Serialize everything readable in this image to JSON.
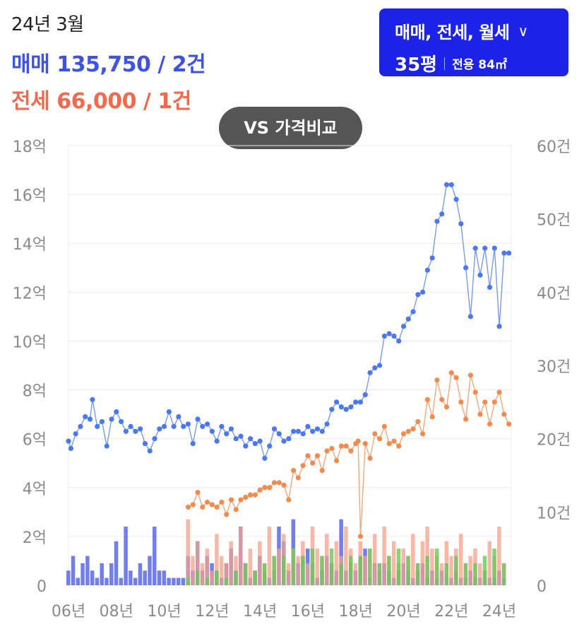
{
  "header": {
    "date": "24년 3월",
    "sale_label": "매매",
    "sale_value": "135,750 / 2건",
    "jeonse_label": "전세",
    "jeonse_value": "66,000 / 1건"
  },
  "filter": {
    "types": "매매, 전세, 월세",
    "pyeong": "35평",
    "area": "전용 84㎡"
  },
  "compare_button": "VS 가격비교",
  "colors": {
    "sale": "#4a78f0",
    "jeonse": "#f48a4c",
    "sale_bar": "#5a66f0",
    "jeonse_bar": "#f4a08a",
    "monthly_bar": "#6cc65a",
    "accent": "#1d22e8"
  },
  "chart_data": {
    "type": "line",
    "x_ticks": [
      "06년",
      "08년",
      "10년",
      "12년",
      "14년",
      "16년",
      "18년",
      "20년",
      "22년",
      "24년"
    ],
    "y_left_ticks": [
      "0",
      "2억",
      "4억",
      "6억",
      "8억",
      "10억",
      "12억",
      "14억",
      "16억",
      "18억"
    ],
    "y_right_ticks": [
      "0",
      "10건",
      "20건",
      "30건",
      "40건",
      "50건",
      "60건"
    ],
    "y_left_range": [
      0,
      18
    ],
    "y_right_range": [
      0,
      60
    ],
    "x_range": [
      2006,
      2024.5
    ],
    "grid": true,
    "series": [
      {
        "name": "매매",
        "kind": "price",
        "x": [
          2006.0,
          2006.1,
          2006.3,
          2006.5,
          2006.7,
          2006.9,
          2007.0,
          2007.2,
          2007.4,
          2007.6,
          2007.8,
          2008.0,
          2008.2,
          2008.4,
          2008.6,
          2008.8,
          2009.0,
          2009.2,
          2009.4,
          2009.6,
          2009.8,
          2010.0,
          2010.2,
          2010.4,
          2010.6,
          2010.8,
          2011.0,
          2011.2,
          2011.4,
          2011.6,
          2011.8,
          2012.0,
          2012.2,
          2012.4,
          2012.6,
          2012.8,
          2013.0,
          2013.2,
          2013.4,
          2013.6,
          2013.8,
          2014.0,
          2014.2,
          2014.4,
          2014.6,
          2014.8,
          2015.0,
          2015.2,
          2015.4,
          2015.6,
          2015.8,
          2016.0,
          2016.2,
          2016.4,
          2016.6,
          2016.8,
          2017.0,
          2017.2,
          2017.4,
          2017.6,
          2017.8,
          2018.0,
          2018.2,
          2018.4,
          2018.6,
          2018.8,
          2019.0,
          2019.2,
          2019.4,
          2019.6,
          2019.8,
          2020.0,
          2020.2,
          2020.4,
          2020.6,
          2020.8,
          2021.0,
          2021.2,
          2021.4,
          2021.6,
          2021.8,
          2022.0,
          2022.2,
          2022.4,
          2022.6,
          2022.8,
          2023.0,
          2023.2,
          2023.4,
          2023.6,
          2023.8,
          2024.0,
          2024.2,
          2024.4
        ],
        "values": [
          5.9,
          5.6,
          6.2,
          6.5,
          6.9,
          6.8,
          7.6,
          6.5,
          6.7,
          5.7,
          6.8,
          7.1,
          6.7,
          6.3,
          6.5,
          6.3,
          6.4,
          5.8,
          5.5,
          6.0,
          6.4,
          6.5,
          7.1,
          6.5,
          6.9,
          6.5,
          6.6,
          5.8,
          6.8,
          6.5,
          6.6,
          6.3,
          5.9,
          6.5,
          6.2,
          6.4,
          6.0,
          6.1,
          5.7,
          6.0,
          5.8,
          5.9,
          5.2,
          5.7,
          6.4,
          6.2,
          5.9,
          6.0,
          6.3,
          6.3,
          6.2,
          6.5,
          6.3,
          6.4,
          6.3,
          6.6,
          7.2,
          7.5,
          7.3,
          7.2,
          7.3,
          7.5,
          7.5,
          7.8,
          8.7,
          8.9,
          9.0,
          10.2,
          10.3,
          10.2,
          10.0,
          10.6,
          10.9,
          11.2,
          11.9,
          12.0,
          12.9,
          13.4,
          14.9,
          15.2,
          16.4,
          16.4,
          15.8,
          14.8,
          13.0,
          11.0,
          13.8,
          12.7,
          13.8,
          12.2,
          13.8,
          10.6,
          13.6,
          13.6
        ]
      },
      {
        "name": "전세",
        "kind": "price",
        "x": [
          2011.0,
          2011.2,
          2011.4,
          2011.6,
          2011.8,
          2012.0,
          2012.2,
          2012.4,
          2012.6,
          2012.8,
          2013.0,
          2013.2,
          2013.4,
          2013.6,
          2013.8,
          2014.0,
          2014.2,
          2014.4,
          2014.6,
          2014.8,
          2015.0,
          2015.2,
          2015.4,
          2015.6,
          2015.8,
          2016.0,
          2016.2,
          2016.4,
          2016.6,
          2016.8,
          2017.0,
          2017.2,
          2017.4,
          2017.6,
          2017.8,
          2018.0,
          2018.1,
          2018.2,
          2018.4,
          2018.6,
          2018.8,
          2019.0,
          2019.2,
          2019.4,
          2019.6,
          2019.8,
          2020.0,
          2020.2,
          2020.4,
          2020.6,
          2020.8,
          2021.0,
          2021.2,
          2021.4,
          2021.6,
          2021.8,
          2022.0,
          2022.2,
          2022.4,
          2022.6,
          2022.8,
          2023.0,
          2023.2,
          2023.4,
          2023.6,
          2023.8,
          2024.0,
          2024.2,
          2024.4
        ],
        "values": [
          3.2,
          3.3,
          3.8,
          3.2,
          3.4,
          3.3,
          3.2,
          3.4,
          2.9,
          3.5,
          3.1,
          3.5,
          3.6,
          3.7,
          3.7,
          3.9,
          4.0,
          4.0,
          4.2,
          4.2,
          4.1,
          3.5,
          4.7,
          4.4,
          4.9,
          5.3,
          5.0,
          5.3,
          4.7,
          5.5,
          5.6,
          5.1,
          5.7,
          5.7,
          5.5,
          5.8,
          5.9,
          2.0,
          5.8,
          5.2,
          6.2,
          6.0,
          6.5,
          5.8,
          5.9,
          5.7,
          6.2,
          6.3,
          6.4,
          6.7,
          6.2,
          7.6,
          6.9,
          8.4,
          7.6,
          7.3,
          8.7,
          8.5,
          7.5,
          6.8,
          8.6,
          7.9,
          7.0,
          7.5,
          6.6,
          7.5,
          7.9,
          7.0,
          6.6
        ]
      },
      {
        "name": "매매 거래량",
        "kind": "volume",
        "x": [
          2006.0,
          2006.2,
          2006.4,
          2006.6,
          2006.8,
          2007.0,
          2007.2,
          2007.4,
          2007.6,
          2007.8,
          2008.0,
          2008.2,
          2008.4,
          2008.6,
          2008.8,
          2009.0,
          2009.2,
          2009.4,
          2009.6,
          2009.8,
          2010.0,
          2010.2,
          2010.4,
          2010.6,
          2010.8,
          2011.0,
          2011.2,
          2011.4,
          2011.6,
          2011.8,
          2012.0,
          2012.2,
          2012.4,
          2012.6,
          2012.8,
          2013.0,
          2013.2,
          2013.4,
          2013.6,
          2013.8,
          2014.0,
          2014.2,
          2014.4,
          2014.6,
          2014.8,
          2015.0,
          2015.2,
          2015.4,
          2015.6,
          2015.8,
          2016.0,
          2016.2,
          2016.4,
          2016.6,
          2016.8,
          2017.0,
          2017.2,
          2017.4,
          2017.6,
          2017.8,
          2018.0,
          2018.2,
          2018.4,
          2018.6,
          2018.8,
          2019.0,
          2019.2,
          2019.4,
          2019.6,
          2019.8,
          2020.0,
          2020.2,
          2020.4,
          2020.6,
          2020.8,
          2021.0,
          2021.2,
          2021.4,
          2021.6,
          2021.8,
          2022.0,
          2022.2,
          2022.4,
          2022.6,
          2022.8,
          2023.0,
          2023.2,
          2023.4,
          2023.6,
          2023.8,
          2024.0,
          2024.2
        ],
        "values": [
          2,
          4,
          1,
          3,
          4,
          2,
          1,
          3,
          1,
          3,
          6,
          1,
          8,
          2,
          1,
          3,
          2,
          4,
          8,
          2,
          2,
          1,
          1,
          1,
          1,
          4,
          2,
          6,
          2,
          4,
          3,
          2,
          1,
          3,
          5,
          2,
          8,
          3,
          1,
          2,
          4,
          2,
          1,
          2,
          8,
          6,
          2,
          9,
          3,
          4,
          5,
          3,
          1,
          2,
          4,
          3,
          2,
          9,
          2,
          3,
          2,
          4,
          5,
          1,
          3,
          2,
          3,
          2,
          1,
          2,
          3,
          2,
          1,
          2,
          3,
          1,
          2,
          1,
          2,
          1,
          1,
          2,
          1,
          1,
          2,
          1,
          1,
          2,
          1,
          1,
          2,
          1
        ]
      },
      {
        "name": "전세 거래량",
        "kind": "volume",
        "x": [
          2011.0,
          2011.2,
          2011.4,
          2011.6,
          2011.8,
          2012.0,
          2012.2,
          2012.4,
          2012.6,
          2012.8,
          2013.0,
          2013.2,
          2013.4,
          2013.6,
          2013.8,
          2014.0,
          2014.2,
          2014.4,
          2014.6,
          2014.8,
          2015.0,
          2015.2,
          2015.4,
          2015.6,
          2015.8,
          2016.0,
          2016.2,
          2016.4,
          2016.6,
          2016.8,
          2017.0,
          2017.2,
          2017.4,
          2017.6,
          2017.8,
          2018.0,
          2018.2,
          2018.4,
          2018.6,
          2018.8,
          2019.0,
          2019.2,
          2019.4,
          2019.6,
          2019.8,
          2020.0,
          2020.2,
          2020.4,
          2020.6,
          2020.8,
          2021.0,
          2021.2,
          2021.4,
          2021.6,
          2021.8,
          2022.0,
          2022.2,
          2022.4,
          2022.6,
          2022.8,
          2023.0,
          2023.2,
          2023.4,
          2023.6,
          2023.8,
          2024.0,
          2024.2
        ],
        "values": [
          9,
          4,
          6,
          3,
          5,
          2,
          7,
          4,
          3,
          6,
          4,
          8,
          3,
          5,
          2,
          6,
          3,
          8,
          4,
          5,
          7,
          3,
          5,
          4,
          6,
          3,
          8,
          5,
          4,
          7,
          3,
          6,
          4,
          8,
          5,
          3,
          6,
          4,
          5,
          7,
          3,
          8,
          4,
          6,
          3,
          5,
          4,
          7,
          3,
          6,
          8,
          5,
          4,
          3,
          6,
          4,
          5,
          7,
          3,
          4,
          5,
          3,
          2,
          6,
          4,
          8,
          3
        ]
      },
      {
        "name": "월세 거래량",
        "kind": "volume",
        "x": [
          2011.0,
          2011.4,
          2011.8,
          2012.2,
          2012.6,
          2013.0,
          2013.4,
          2013.8,
          2014.2,
          2014.6,
          2015.0,
          2015.4,
          2015.8,
          2016.2,
          2016.6,
          2017.0,
          2017.4,
          2017.8,
          2018.2,
          2018.6,
          2019.0,
          2019.4,
          2019.8,
          2020.2,
          2020.6,
          2021.0,
          2021.4,
          2021.8,
          2022.2,
          2022.6,
          2023.0,
          2023.4,
          2023.8,
          2024.2
        ],
        "values": [
          1,
          2,
          1,
          2,
          1,
          2,
          3,
          2,
          3,
          4,
          4,
          5,
          4,
          5,
          4,
          5,
          3,
          4,
          4,
          5,
          3,
          4,
          5,
          4,
          3,
          4,
          5,
          3,
          4,
          3,
          3,
          4,
          5,
          3
        ]
      }
    ]
  }
}
